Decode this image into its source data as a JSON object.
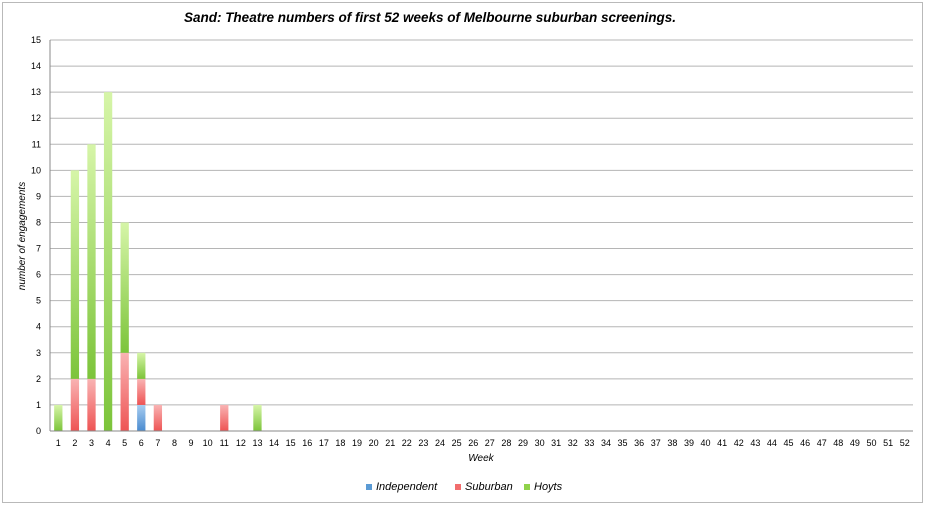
{
  "chart_data": {
    "type": "bar",
    "stacked": true,
    "title": "Sand: Theatre numbers of first 52 weeks of Melbourne suburban screenings.",
    "xlabel": "Week",
    "ylabel": "number of engagements",
    "ylim": [
      0,
      15
    ],
    "yticks": [
      "0",
      "1",
      "2",
      "3",
      "4",
      "5",
      "6",
      "7",
      "8",
      "9",
      "10",
      "11",
      "12",
      "13",
      "14",
      "15"
    ],
    "categories": [
      "1",
      "2",
      "3",
      "4",
      "5",
      "6",
      "7",
      "8",
      "9",
      "10",
      "11",
      "12",
      "13",
      "14",
      "15",
      "16",
      "17",
      "18",
      "19",
      "20",
      "21",
      "22",
      "23",
      "24",
      "25",
      "26",
      "27",
      "28",
      "29",
      "30",
      "31",
      "32",
      "33",
      "34",
      "35",
      "36",
      "37",
      "38",
      "39",
      "40",
      "41",
      "42",
      "43",
      "44",
      "45",
      "46",
      "47",
      "48",
      "49",
      "50",
      "51",
      "52"
    ],
    "series": [
      {
        "name": "Independent",
        "color": "#5b9bd5",
        "values": [
          0,
          0,
          0,
          0,
          0,
          1,
          0,
          0,
          0,
          0,
          0,
          0,
          0,
          0,
          0,
          0,
          0,
          0,
          0,
          0,
          0,
          0,
          0,
          0,
          0,
          0,
          0,
          0,
          0,
          0,
          0,
          0,
          0,
          0,
          0,
          0,
          0,
          0,
          0,
          0,
          0,
          0,
          0,
          0,
          0,
          0,
          0,
          0,
          0,
          0,
          0,
          0
        ]
      },
      {
        "name": "Suburban",
        "color": "#f26d6d",
        "values": [
          0,
          2,
          2,
          0,
          3,
          1,
          1,
          0,
          0,
          0,
          1,
          0,
          0,
          0,
          0,
          0,
          0,
          0,
          0,
          0,
          0,
          0,
          0,
          0,
          0,
          0,
          0,
          0,
          0,
          0,
          0,
          0,
          0,
          0,
          0,
          0,
          0,
          0,
          0,
          0,
          0,
          0,
          0,
          0,
          0,
          0,
          0,
          0,
          0,
          0,
          0,
          0
        ]
      },
      {
        "name": "Hoyts",
        "color": "#8fd24a",
        "values": [
          1,
          8,
          9,
          13,
          5,
          1,
          0,
          0,
          0,
          0,
          0,
          0,
          1,
          0,
          0,
          0,
          0,
          0,
          0,
          0,
          0,
          0,
          0,
          0,
          0,
          0,
          0,
          0,
          0,
          0,
          0,
          0,
          0,
          0,
          0,
          0,
          0,
          0,
          0,
          0,
          0,
          0,
          0,
          0,
          0,
          0,
          0,
          0,
          0,
          0,
          0,
          0
        ]
      }
    ],
    "grid": true,
    "legend_position": "bottom"
  }
}
